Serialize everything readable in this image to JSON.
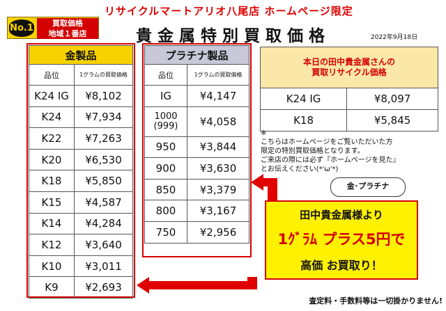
{
  "header": {
    "store_line": "リサイクルマートアリオ八尾店 ホームページ限定",
    "title": "貴金属特別買取価格",
    "date": "2022年9月18日"
  },
  "badge": {
    "rank_small": "地域",
    "rank": "No.1",
    "line1": "買取価格",
    "line2": "地域１番店"
  },
  "gold_table": {
    "caption": "金製品",
    "col_grade": "品位",
    "col_price": "1グラムの買取価格",
    "rows": [
      {
        "grade": "K24 IG",
        "price": "¥8,102"
      },
      {
        "grade": "K24",
        "price": "¥7,934"
      },
      {
        "grade": "K22",
        "price": "¥7,263"
      },
      {
        "grade": "K20",
        "price": "¥6,530"
      },
      {
        "grade": "K18",
        "price": "¥5,850"
      },
      {
        "grade": "K15",
        "price": "¥4,587"
      },
      {
        "grade": "K14",
        "price": "¥4,284"
      },
      {
        "grade": "K12",
        "price": "¥3,640"
      },
      {
        "grade": "K10",
        "price": "¥3,011"
      },
      {
        "grade": "K9",
        "price": "¥2,693"
      }
    ]
  },
  "platinum_table": {
    "caption": "プラチナ製品",
    "col_grade": "品位",
    "col_price": "1グラムの買取価格",
    "rows": [
      {
        "grade": "IG",
        "price": "¥4,147"
      },
      {
        "grade": "1000",
        "grade_sub": "(999)",
        "price": "¥4,058"
      },
      {
        "grade": "950",
        "price": "¥3,844"
      },
      {
        "grade": "900",
        "price": "¥3,630"
      },
      {
        "grade": "850",
        "price": "¥3,379"
      },
      {
        "grade": "800",
        "price": "¥3,167"
      },
      {
        "grade": "750",
        "price": "¥2,956"
      }
    ]
  },
  "today_table": {
    "caption_line1": "本日の田中貴金属さんの",
    "caption_line2": "買取リサイクル価格",
    "rows": [
      {
        "grade": "K24 IG",
        "price": "¥8,097"
      },
      {
        "grade": "K18",
        "price": "¥5,845"
      }
    ]
  },
  "note": {
    "mark": "※",
    "line1": "こちらはホームページをご覧いただいた方",
    "line2": "限定の特別買取価格となります。",
    "line3": "ご来店の際には必ず『ホームページを見た』",
    "line4": "とお伝えください(*'ω'*)"
  },
  "callout": {
    "bubble": "金･プラチナ",
    "line1": "田中貴金属様より",
    "line2": "1ｸﾞﾗﾑ プラス5円で",
    "line3": "高価 お買取り！"
  },
  "footer": "査定料・手数料等は一切掛かりません!",
  "colors": {
    "red": "#d40000",
    "yellow": "#fff100",
    "gold": "#f7d200",
    "platinum": "#c8c8d8"
  }
}
